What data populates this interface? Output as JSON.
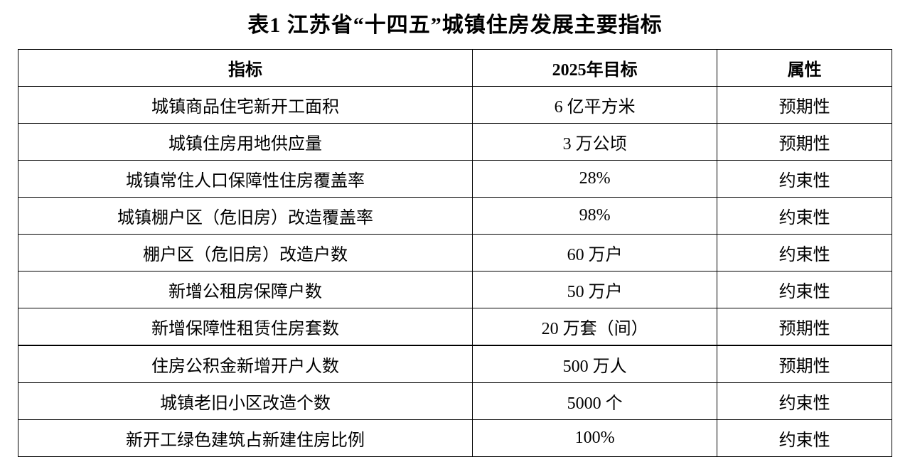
{
  "title": "表1 江苏省“十四五”城镇住房发展主要指标",
  "table": {
    "headers": {
      "indicator": "指标",
      "target": "2025年目标",
      "attribute": "属性"
    },
    "rows": [
      {
        "indicator": "城镇商品住宅新开工面积",
        "target": "6 亿平方米",
        "attribute": "预期性",
        "divider": false
      },
      {
        "indicator": "城镇住房用地供应量",
        "target": "3 万公顷",
        "attribute": "预期性",
        "divider": false
      },
      {
        "indicator": "城镇常住人口保障性住房覆盖率",
        "target": "28%",
        "attribute": "约束性",
        "divider": false
      },
      {
        "indicator": "城镇棚户区（危旧房）改造覆盖率",
        "target": "98%",
        "attribute": "约束性",
        "divider": false
      },
      {
        "indicator": "棚户区（危旧房）改造户数",
        "target": "60 万户",
        "attribute": "约束性",
        "divider": false
      },
      {
        "indicator": "新增公租房保障户数",
        "target": "50 万户",
        "attribute": "约束性",
        "divider": false
      },
      {
        "indicator": "新增保障性租赁住房套数",
        "target": "20 万套（间）",
        "attribute": "预期性",
        "divider": false
      },
      {
        "indicator": "住房公积金新增开户人数",
        "target": "500 万人",
        "attribute": "预期性",
        "divider": true
      },
      {
        "indicator": "城镇老旧小区改造个数",
        "target": "5000 个",
        "attribute": "约束性",
        "divider": false
      },
      {
        "indicator": "新开工绿色建筑占新建住房比例",
        "target": "100%",
        "attribute": "约束性",
        "divider": false
      }
    ]
  },
  "styling": {
    "background_color": "#ffffff",
    "text_color": "#000000",
    "border_color": "#000000",
    "title_fontsize": 30,
    "cell_fontsize": 24,
    "font_family": "SimSun",
    "col_widths_pct": [
      52,
      28,
      20
    ]
  }
}
